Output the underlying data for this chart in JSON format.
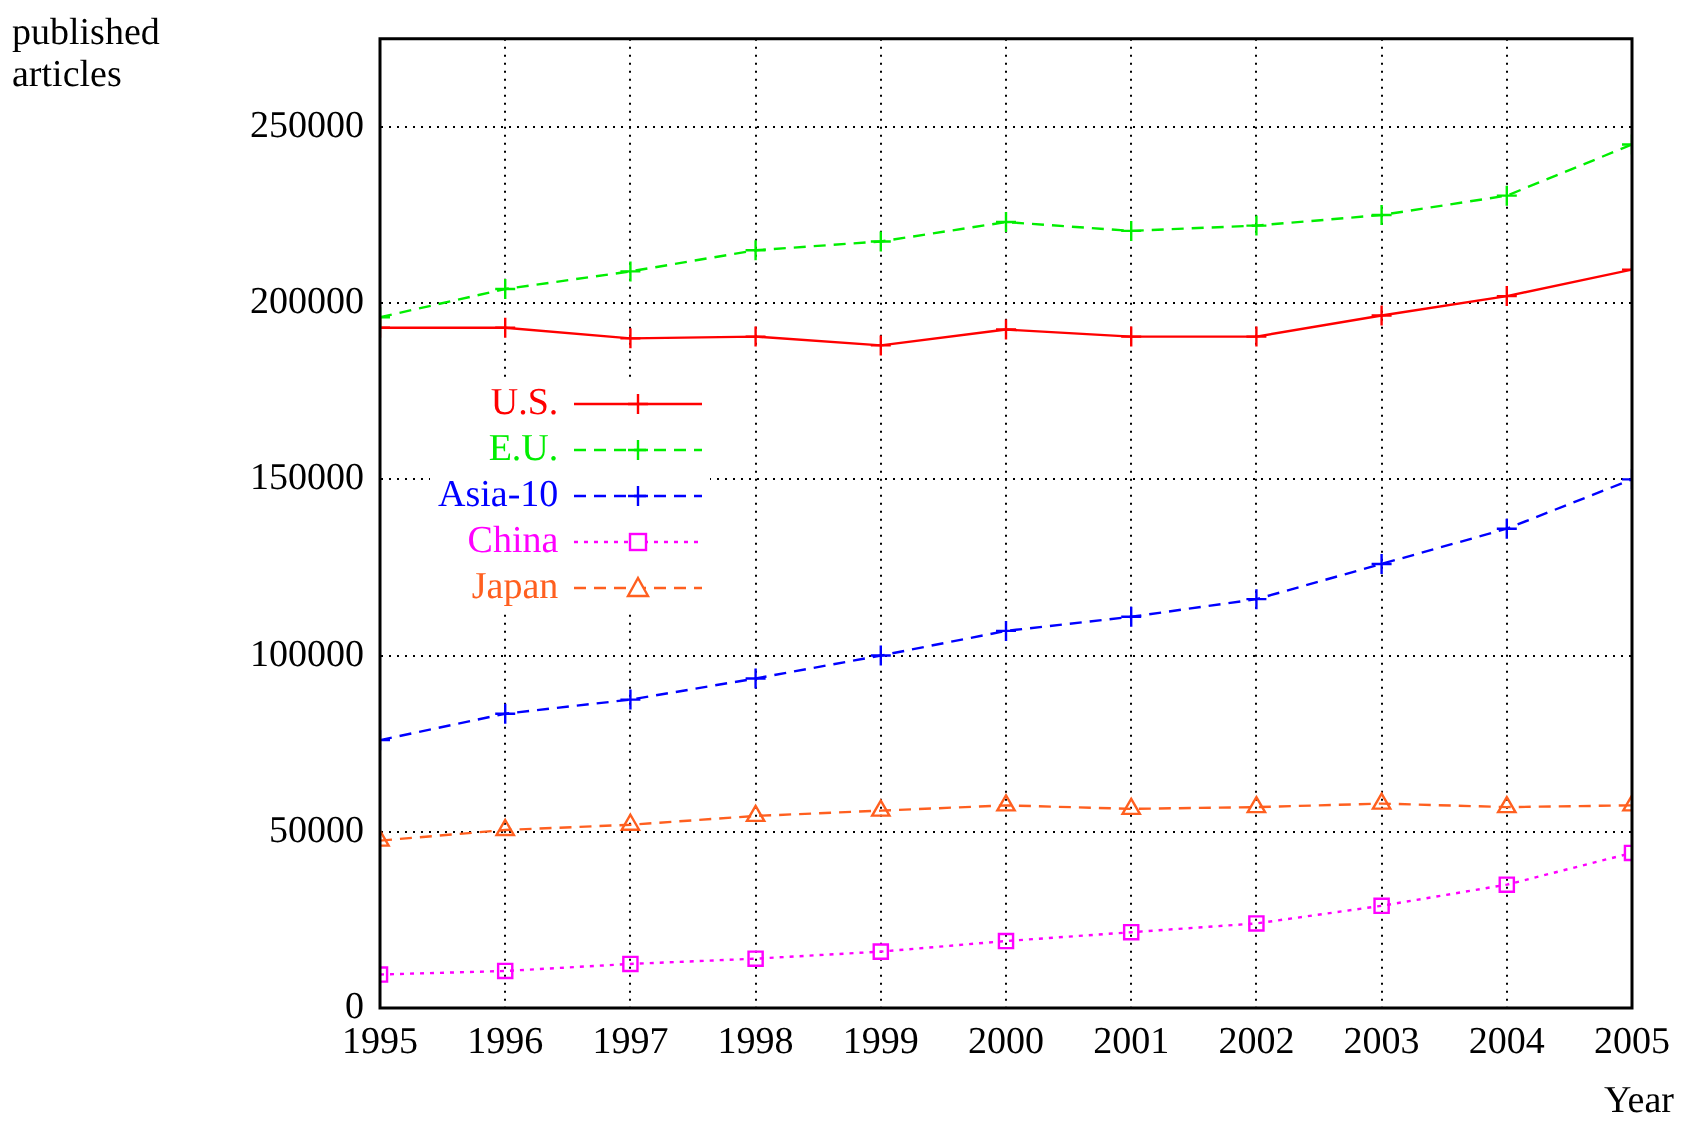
{
  "chart_data": {
    "type": "line",
    "xlabel": "Year",
    "ylabel": "published articles",
    "x": [
      1995,
      1996,
      1997,
      1998,
      1999,
      2000,
      2001,
      2002,
      2003,
      2004,
      2005
    ],
    "xlim": [
      1995,
      2005
    ],
    "xticks": [
      1995,
      1996,
      1997,
      1998,
      1999,
      2000,
      2001,
      2002,
      2003,
      2004,
      2005
    ],
    "ylim": [
      0,
      275000
    ],
    "yticks": [
      0,
      50000,
      100000,
      150000,
      200000,
      250000
    ],
    "grid": true,
    "legend": "top left",
    "series": [
      {
        "name": "U.S.",
        "color": "#ff0000",
        "marker": "cross",
        "line_style": "solid",
        "values": [
          193000,
          193000,
          190000,
          190500,
          188000,
          192500,
          190500,
          190500,
          196500,
          202000,
          209500
        ]
      },
      {
        "name": "E.U.",
        "color": "#00ee00",
        "marker": "cross",
        "line_style": "dashed",
        "values": [
          196000,
          204000,
          209000,
          215000,
          217500,
          223000,
          220500,
          222000,
          225000,
          230500,
          245000
        ]
      },
      {
        "name": "Asia-10",
        "color": "#0000ff",
        "marker": "cross",
        "line_style": "dashed",
        "values": [
          76000,
          83500,
          87500,
          93500,
          100000,
          107000,
          111000,
          116000,
          126000,
          136000,
          150000
        ]
      },
      {
        "name": "China",
        "color": "#ff00ff",
        "marker": "square",
        "line_style": "dotted",
        "values": [
          9500,
          10500,
          12500,
          14000,
          16000,
          19000,
          21500,
          24000,
          29000,
          35000,
          44000
        ]
      },
      {
        "name": "Japan",
        "color": "#ff5f1f",
        "marker": "triangle",
        "line_style": "dashed",
        "values": [
          47500,
          50500,
          52000,
          54500,
          56000,
          57500,
          56500,
          57000,
          58000,
          57000,
          57500
        ]
      }
    ]
  }
}
